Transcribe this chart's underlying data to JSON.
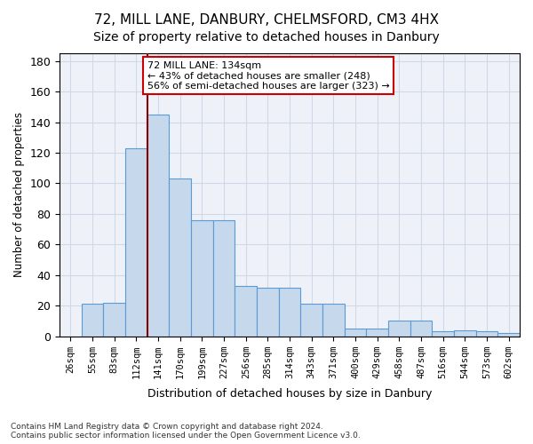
{
  "title_line1": "72, MILL LANE, DANBURY, CHELMSFORD, CM3 4HX",
  "title_line2": "Size of property relative to detached houses in Danbury",
  "xlabel": "Distribution of detached houses by size in Danbury",
  "ylabel": "Number of detached properties",
  "categories": [
    "26sqm",
    "55sqm",
    "83sqm",
    "112sqm",
    "141sqm",
    "170sqm",
    "199sqm",
    "227sqm",
    "256sqm",
    "285sqm",
    "314sqm",
    "343sqm",
    "371sqm",
    "400sqm",
    "429sqm",
    "458sqm",
    "487sqm",
    "516sqm",
    "544sqm",
    "573sqm",
    "602sqm"
  ],
  "values": [
    0,
    21,
    22,
    123,
    145,
    103,
    76,
    76,
    33,
    32,
    32,
    21,
    21,
    5,
    5,
    10,
    10,
    3,
    4,
    3,
    2
  ],
  "bar_color": "#c5d8ec",
  "bar_edge_color": "#5b9bd5",
  "vline_x": 3.5,
  "vline_color": "#8b0000",
  "annotation_text": "72 MILL LANE: 134sqm\n← 43% of detached houses are smaller (248)\n56% of semi-detached houses are larger (323) →",
  "annotation_box_color": "white",
  "annotation_box_edge": "#cc0000",
  "ylim": [
    0,
    185
  ],
  "yticks": [
    0,
    20,
    40,
    60,
    80,
    100,
    120,
    140,
    160,
    180
  ],
  "footer_line1": "Contains HM Land Registry data © Crown copyright and database right 2024.",
  "footer_line2": "Contains public sector information licensed under the Open Government Licence v3.0.",
  "title_fontsize": 11,
  "subtitle_fontsize": 10,
  "grid_color": "#d0d8e8",
  "bg_color": "#eef2f8"
}
